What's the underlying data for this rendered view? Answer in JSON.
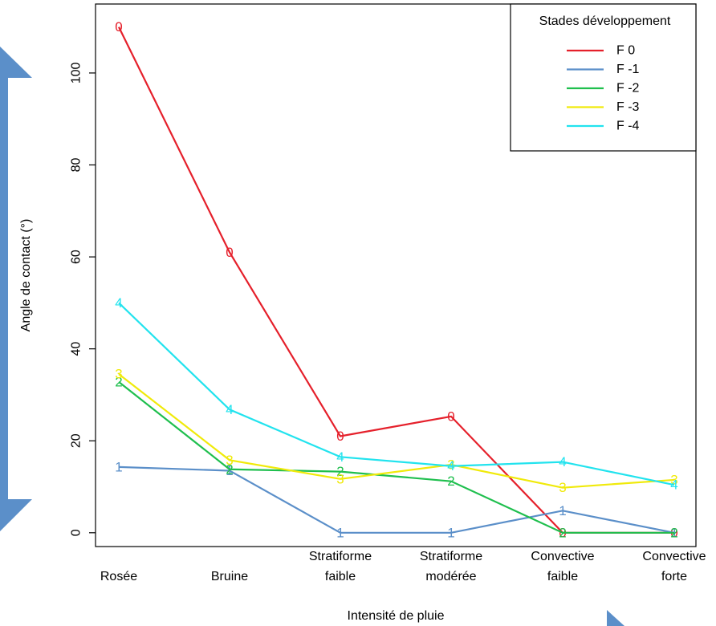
{
  "chart_data": {
    "type": "line",
    "title": "",
    "xlabel": "Intensité de pluie",
    "ylabel": "Angle de contact (°)",
    "categories": [
      [
        "Rosée"
      ],
      [
        "Bruine"
      ],
      [
        "Stratiforme",
        "faible"
      ],
      [
        "Stratiforme",
        "modérée"
      ],
      [
        "Convective",
        "faible"
      ],
      [
        "Convective",
        "forte"
      ]
    ],
    "ylim": [
      -3,
      115
    ],
    "yticks": [
      0,
      20,
      40,
      60,
      80,
      100
    ],
    "grid": false,
    "legend": {
      "title": "Stades développement",
      "position": "top-right"
    },
    "series": [
      {
        "name": "F 0",
        "marker": "0",
        "color": "#e5202b",
        "values": [
          110,
          61,
          21,
          25.3,
          0,
          0
        ]
      },
      {
        "name": "F -1",
        "marker": "1",
        "color": "#5b8fc9",
        "values": [
          14.3,
          13.5,
          0,
          0,
          4.8,
          0
        ]
      },
      {
        "name": "F -2",
        "marker": "2",
        "color": "#1fbf4e",
        "values": [
          32.8,
          13.8,
          13.3,
          11.2,
          0,
          0
        ]
      },
      {
        "name": "F -3",
        "marker": "3",
        "color": "#f0ea0a",
        "values": [
          34.5,
          15.8,
          11.7,
          14.8,
          9.8,
          11.5
        ]
      },
      {
        "name": "F -4",
        "marker": "4",
        "color": "#22e3ee",
        "values": [
          50,
          26.8,
          16.5,
          14.5,
          15.4,
          10.4
        ]
      }
    ],
    "decor_color": "#5b8fc9"
  }
}
